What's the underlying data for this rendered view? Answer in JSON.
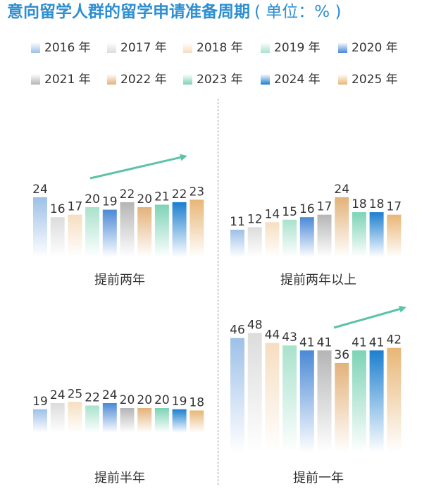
{
  "header": {
    "title": "意向留学人群的留学申请准备周期",
    "unit": "( 单位：% )"
  },
  "chart_data": [
    {
      "type": "bar",
      "title": "提前两年",
      "categories": [
        "2016 年",
        "2017 年",
        "2018 年",
        "2019 年",
        "2020 年",
        "2021 年",
        "2022 年",
        "2023 年",
        "2024 年",
        "2025 年"
      ],
      "values": [
        24,
        16,
        17,
        20,
        19,
        22,
        20,
        21,
        22,
        23
      ],
      "ylim": [
        0,
        60
      ],
      "annotation": "upward-trend-arrow"
    },
    {
      "type": "bar",
      "title": "提前两年以上",
      "categories": [
        "2016 年",
        "2017 年",
        "2018 年",
        "2019 年",
        "2020 年",
        "2021 年",
        "2022 年",
        "2023 年",
        "2024 年",
        "2025 年"
      ],
      "values": [
        11,
        12,
        14,
        15,
        16,
        17,
        24,
        18,
        18,
        17
      ],
      "ylim": [
        0,
        60
      ]
    },
    {
      "type": "bar",
      "title": "提前半年",
      "categories": [
        "2016 年",
        "2017 年",
        "2018 年",
        "2019 年",
        "2020 年",
        "2021 年",
        "2022 年",
        "2023 年",
        "2024 年",
        "2025 年"
      ],
      "values": [
        19,
        24,
        25,
        22,
        24,
        20,
        20,
        20,
        19,
        18
      ],
      "ylim": [
        0,
        60
      ]
    },
    {
      "type": "bar",
      "title": "提前一年",
      "categories": [
        "2016 年",
        "2017 年",
        "2018 年",
        "2019 年",
        "2020 年",
        "2021 年",
        "2022 年",
        "2023 年",
        "2024 年",
        "2025 年"
      ],
      "values": [
        46,
        48,
        44,
        43,
        41,
        41,
        36,
        41,
        41,
        42
      ],
      "ylim": [
        0,
        60
      ],
      "annotation": "upward-trend-arrow"
    }
  ],
  "legend": [
    {
      "label": "2016 年",
      "color": "#9dc0e8"
    },
    {
      "label": "2017 年",
      "color": "#dcdcdc"
    },
    {
      "label": "2018 年",
      "color": "#f6dec0"
    },
    {
      "label": "2019 年",
      "color": "#a9e2cc"
    },
    {
      "label": "2020 年",
      "color": "#4a89d6"
    },
    {
      "label": "2021 年",
      "color": "#b5b5b5"
    },
    {
      "label": "2022 年",
      "color": "#e3b27a"
    },
    {
      "label": "2023 年",
      "color": "#7dd3b5"
    },
    {
      "label": "2024 年",
      "color": "#1c7fcf"
    },
    {
      "label": "2025 年",
      "color": "#e8b676"
    }
  ],
  "arrow_color": "#5cc2a8"
}
